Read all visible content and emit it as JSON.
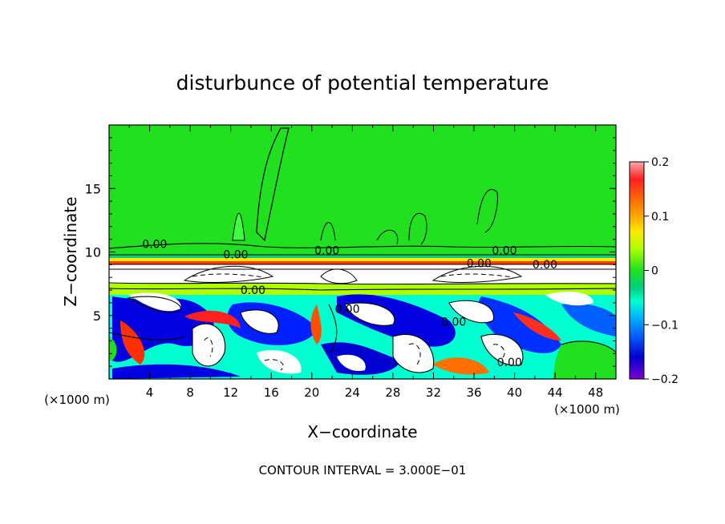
{
  "chart_data": {
    "type": "heatmap",
    "title": "disturbunce of potential temperature",
    "xlabel": "X−coordinate",
    "ylabel": "Z−coordinate",
    "x_unit": "(×1000 m)",
    "y_unit": "(×1000 m)",
    "xlim": [
      0,
      50
    ],
    "ylim": [
      0,
      20
    ],
    "x_ticks": [
      4,
      8,
      12,
      16,
      20,
      24,
      28,
      32,
      36,
      40,
      44,
      48
    ],
    "y_ticks": [
      5,
      10,
      15
    ],
    "contour_interval_text": "CONTOUR INTERVAL = 3.000E−01",
    "contour_labels": [
      {
        "x": 4.5,
        "y": 10.3,
        "text": "0.00"
      },
      {
        "x": 12.5,
        "y": 9.5,
        "text": "0.00"
      },
      {
        "x": 21.5,
        "y": 9.8,
        "text": "0.00"
      },
      {
        "x": 14.2,
        "y": 6.7,
        "text": "0.00"
      },
      {
        "x": 23.5,
        "y": 5.2,
        "text": "0.00"
      },
      {
        "x": 34.0,
        "y": 4.2,
        "text": "0.00"
      },
      {
        "x": 36.5,
        "y": 8.8,
        "text": "0.00"
      },
      {
        "x": 39.0,
        "y": 9.8,
        "text": "0.00"
      },
      {
        "x": 43.0,
        "y": 8.7,
        "text": "0.00"
      },
      {
        "x": 39.5,
        "y": 1.0,
        "text": "0.00"
      }
    ],
    "colorbar": {
      "min": -0.2,
      "max": 0.2,
      "tick_labels": [
        "0.2",
        "0.1",
        "0",
        "−0.1",
        "−0.2"
      ],
      "tick_values": [
        0.2,
        0.1,
        0,
        -0.1,
        -0.2
      ],
      "colors": [
        "#ffa0a0",
        "#ff2020",
        "#ff6000",
        "#ffa000",
        "#ffe000",
        "#b0ff00",
        "#30ff30",
        "#00d060",
        "#00ffc0",
        "#00b0ff",
        "#0060ff",
        "#0000e0",
        "#8000ff"
      ]
    }
  }
}
